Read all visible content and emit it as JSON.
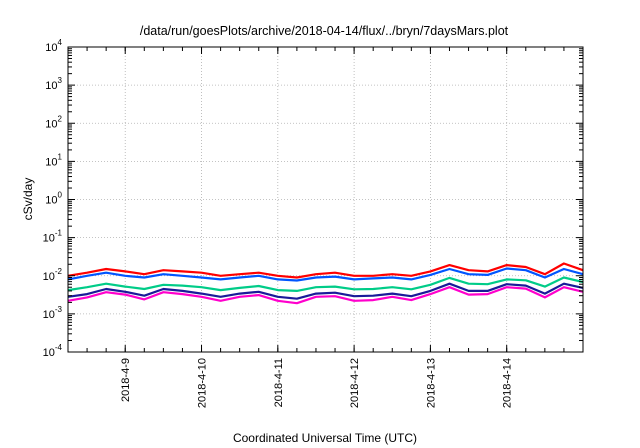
{
  "chart_data": {
    "type": "line",
    "title": "/data/run/goesPlots/archive/2018-04-14/flux/../bryn/7daysMars.plot",
    "xlabel": "Coordinated Universal Time (UTC)",
    "ylabel": "cSv/day",
    "yscale": "log",
    "ylim": [
      0.0001,
      10000
    ],
    "xlim": [
      "2018-04-08T06:00",
      "2018-04-15T00:00"
    ],
    "grid": true,
    "x_tick_labels": [
      "2018-4-9",
      "2018-4-10",
      "2018-4-11",
      "2018-4-12",
      "2018-4-13",
      "2018-4-14"
    ],
    "x_tick_values": [
      "2018-04-09",
      "2018-04-10",
      "2018-04-11",
      "2018-04-12",
      "2018-04-13",
      "2018-04-14"
    ],
    "y_tick_exponents": [
      -4,
      -3,
      -2,
      -1,
      0,
      1,
      2,
      3,
      4
    ],
    "y_tick_base": "10",
    "x": [
      "2018-04-08T06:00",
      "2018-04-08T12:00",
      "2018-04-08T18:00",
      "2018-04-09T00:00",
      "2018-04-09T06:00",
      "2018-04-09T12:00",
      "2018-04-09T18:00",
      "2018-04-10T00:00",
      "2018-04-10T06:00",
      "2018-04-10T12:00",
      "2018-04-10T18:00",
      "2018-04-11T00:00",
      "2018-04-11T06:00",
      "2018-04-11T12:00",
      "2018-04-11T18:00",
      "2018-04-12T00:00",
      "2018-04-12T06:00",
      "2018-04-12T12:00",
      "2018-04-12T18:00",
      "2018-04-13T00:00",
      "2018-04-13T06:00",
      "2018-04-13T12:00",
      "2018-04-13T18:00",
      "2018-04-14T00:00",
      "2018-04-14T06:00",
      "2018-04-14T12:00",
      "2018-04-14T18:00",
      "2018-04-15T00:00"
    ],
    "series": [
      {
        "color": "#ff0000",
        "values": [
          0.01,
          0.012,
          0.015,
          0.013,
          0.011,
          0.014,
          0.013,
          0.012,
          0.01,
          0.011,
          0.012,
          0.01,
          0.009,
          0.011,
          0.012,
          0.01,
          0.01,
          0.011,
          0.01,
          0.013,
          0.019,
          0.014,
          0.013,
          0.019,
          0.017,
          0.011,
          0.021,
          0.014
        ]
      },
      {
        "color": "#0055ff",
        "values": [
          0.008,
          0.01,
          0.012,
          0.01,
          0.009,
          0.011,
          0.01,
          0.009,
          0.008,
          0.009,
          0.01,
          0.008,
          0.0075,
          0.009,
          0.0095,
          0.008,
          0.0085,
          0.009,
          0.008,
          0.0105,
          0.015,
          0.011,
          0.0105,
          0.0155,
          0.014,
          0.009,
          0.015,
          0.011
        ]
      },
      {
        "color": "#00cc88",
        "values": [
          0.0042,
          0.005,
          0.0062,
          0.0052,
          0.0045,
          0.0058,
          0.0055,
          0.005,
          0.0042,
          0.0048,
          0.0054,
          0.0042,
          0.004,
          0.005,
          0.0052,
          0.0044,
          0.0045,
          0.005,
          0.0044,
          0.0058,
          0.0088,
          0.0062,
          0.006,
          0.008,
          0.0076,
          0.0052,
          0.009,
          0.0068
        ]
      },
      {
        "color": "#1a1a99",
        "values": [
          0.0028,
          0.0033,
          0.0045,
          0.0038,
          0.003,
          0.0045,
          0.004,
          0.0034,
          0.0028,
          0.0034,
          0.0038,
          0.0028,
          0.0025,
          0.0034,
          0.0036,
          0.0029,
          0.003,
          0.0034,
          0.0029,
          0.004,
          0.0062,
          0.004,
          0.004,
          0.006,
          0.0055,
          0.0034,
          0.0062,
          0.0048
        ]
      },
      {
        "color": "#ff00cc",
        "values": [
          0.0022,
          0.0027,
          0.0037,
          0.0032,
          0.0024,
          0.0037,
          0.0033,
          0.0028,
          0.0022,
          0.0028,
          0.0031,
          0.0022,
          0.0019,
          0.0028,
          0.0029,
          0.0022,
          0.0023,
          0.0028,
          0.0023,
          0.0033,
          0.005,
          0.0032,
          0.0033,
          0.005,
          0.0046,
          0.0027,
          0.005,
          0.0038
        ]
      }
    ]
  }
}
